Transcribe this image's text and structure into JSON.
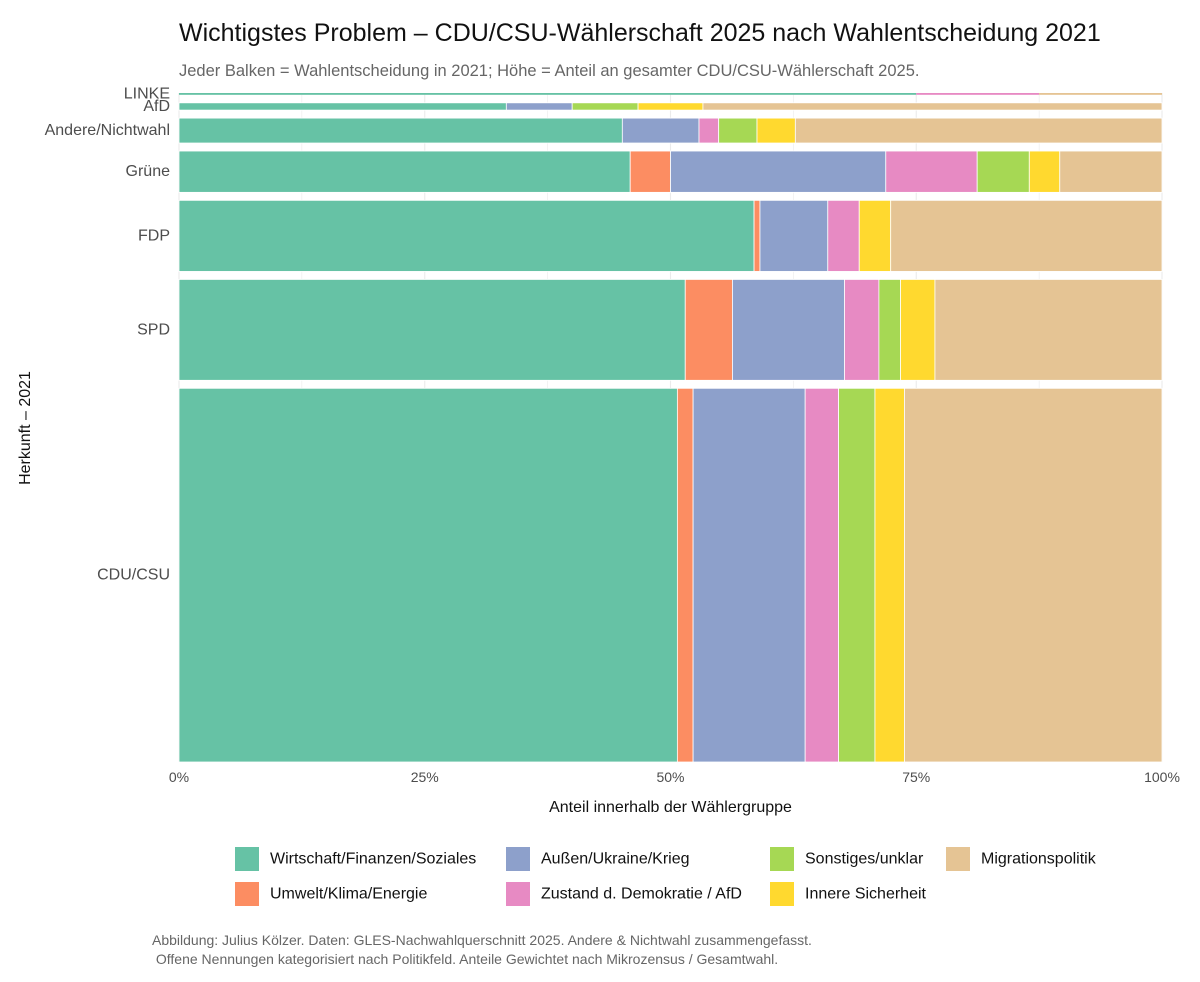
{
  "chart_data": {
    "type": "bar",
    "orientation": "horizontal",
    "stacked": true,
    "variable_width": true,
    "title": "Wichtigstes Problem – CDU/CSU-Wählerschaft 2025 nach Wahlentscheidung 2021",
    "subtitle": "Jeder Balken = Wahlentscheidung in 2021; Höhe = Anteil an gesamter CDU/CSU-Wählerschaft 2025.",
    "xlabel": "Anteil innerhalb der Wählergruppe",
    "ylabel": "Herkunft – 2021",
    "xlim": [
      0,
      100
    ],
    "x_ticks": [
      "0%",
      "25%",
      "50%",
      "75%",
      "100%"
    ],
    "grid": true,
    "legend_position": "bottom",
    "caption": [
      "Abbildung: Julius Kölzer. Daten: GLES-Nachwahlquerschnitt 2025. Andere & Nichtwahl zusammengefasst.",
      " Offene Nennungen kategorisiert nach Politikfeld. Anteile Gewichtet nach Mikrozensus / Gesamtwahl."
    ],
    "series_order": [
      "Wirtschaft/Finanzen/Soziales",
      "Umwelt/Klima/Energie",
      "Außen/Ukraine/Krieg",
      "Zustand d. Demokratie / AfD",
      "Sonstiges/unklar",
      "Innere Sicherheit",
      "Migrationspolitik"
    ],
    "legend_order": [
      "Wirtschaft/Finanzen/Soziales",
      "Umwelt/Klima/Energie",
      "Außen/Ukraine/Krieg",
      "Zustand d. Demokratie / AfD",
      "Sonstiges/unklar",
      "Innere Sicherheit",
      "Migrationspolitik"
    ],
    "colors": {
      "Wirtschaft/Finanzen/Soziales": "#66c2a5",
      "Umwelt/Klima/Energie": "#fc8d62",
      "Außen/Ukraine/Krieg": "#8da0cb",
      "Zustand d. Demokratie / AfD": "#e78ac3",
      "Sonstiges/unklar": "#a6d854",
      "Innere Sicherheit": "#ffd92f",
      "Migrationspolitik": "#e5c494"
    },
    "groups": [
      {
        "name": "LINKE",
        "share_of_total": 0.3,
        "values": {
          "Wirtschaft/Finanzen/Soziales": 75.0,
          "Umwelt/Klima/Energie": 0,
          "Außen/Ukraine/Krieg": 0,
          "Zustand d. Demokratie / AfD": 12.5,
          "Sonstiges/unklar": 0,
          "Innere Sicherheit": 0,
          "Migrationspolitik": 12.5
        }
      },
      {
        "name": "AfD",
        "share_of_total": 1.2,
        "values": {
          "Wirtschaft/Finanzen/Soziales": 33.3,
          "Umwelt/Klima/Energie": 0,
          "Außen/Ukraine/Krieg": 6.7,
          "Zustand d. Demokratie / AfD": 0,
          "Sonstiges/unklar": 6.7,
          "Innere Sicherheit": 6.6,
          "Migrationspolitik": 46.7
        }
      },
      {
        "name": "Andere/Nichtwahl",
        "share_of_total": 4.1,
        "values": {
          "Wirtschaft/Finanzen/Soziales": 45.1,
          "Umwelt/Klima/Energie": 0,
          "Außen/Ukraine/Krieg": 7.8,
          "Zustand d. Demokratie / AfD": 2.0,
          "Sonstiges/unklar": 3.9,
          "Innere Sicherheit": 3.9,
          "Migrationspolitik": 37.3
        }
      },
      {
        "name": "Grüne",
        "share_of_total": 6.8,
        "values": {
          "Wirtschaft/Finanzen/Soziales": 45.9,
          "Umwelt/Klima/Energie": 4.1,
          "Außen/Ukraine/Krieg": 21.9,
          "Zustand d. Demokratie / AfD": 9.3,
          "Sonstiges/unklar": 5.3,
          "Innere Sicherheit": 3.1,
          "Migrationspolitik": 10.4
        }
      },
      {
        "name": "FDP",
        "share_of_total": 11.7,
        "values": {
          "Wirtschaft/Finanzen/Soziales": 58.5,
          "Umwelt/Klima/Energie": 0.6,
          "Außen/Ukraine/Krieg": 6.9,
          "Zustand d. Demokratie / AfD": 3.2,
          "Sonstiges/unklar": 0,
          "Innere Sicherheit": 3.2,
          "Migrationspolitik": 27.6
        }
      },
      {
        "name": "SPD",
        "share_of_total": 16.6,
        "values": {
          "Wirtschaft/Finanzen/Soziales": 51.5,
          "Umwelt/Klima/Energie": 4.8,
          "Außen/Ukraine/Krieg": 11.4,
          "Zustand d. Demokratie / AfD": 3.5,
          "Sonstiges/unklar": 2.2,
          "Innere Sicherheit": 3.5,
          "Migrationspolitik": 23.1
        }
      },
      {
        "name": "CDU/CSU",
        "share_of_total": 61.5,
        "values": {
          "Wirtschaft/Finanzen/Soziales": 50.7,
          "Umwelt/Klima/Energie": 1.6,
          "Außen/Ukraine/Krieg": 11.4,
          "Zustand d. Demokratie / AfD": 3.4,
          "Sonstiges/unklar": 3.7,
          "Innere Sicherheit": 3.0,
          "Migrationspolitik": 26.2
        }
      }
    ]
  }
}
